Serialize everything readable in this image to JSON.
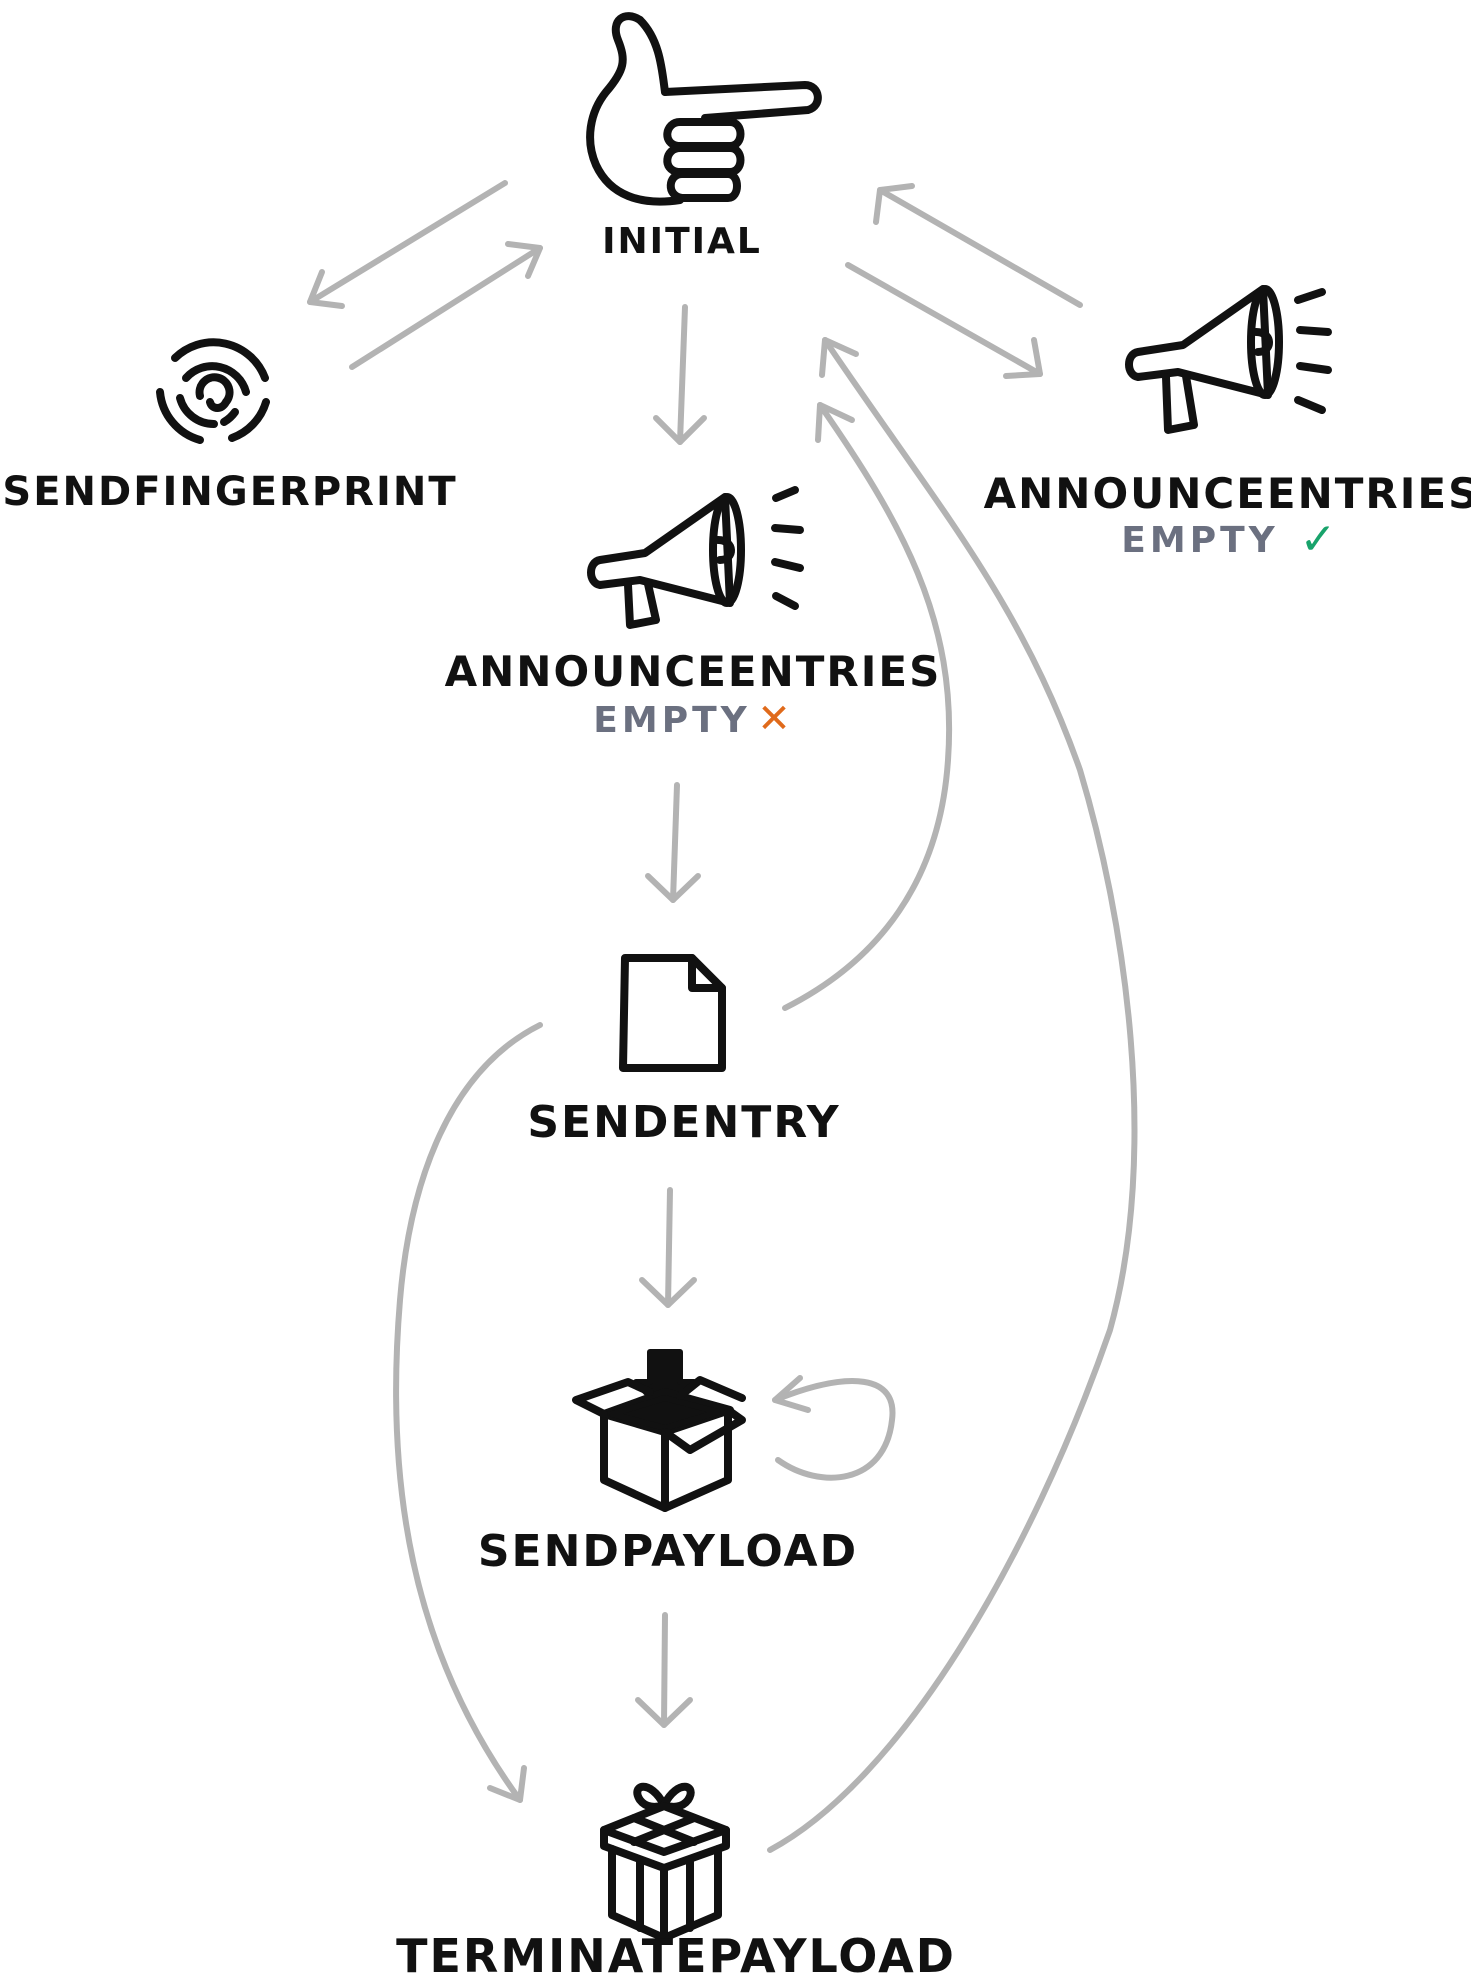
{
  "colors": {
    "edge": "#b3b3b3",
    "ink": "#111111",
    "empty_label": "#6b7080",
    "cross": "#e06a1b",
    "check": "#18a36b"
  },
  "nodes": {
    "initial": {
      "label": "INITIAL",
      "icon": "pointing-hand-icon"
    },
    "send_fingerprint": {
      "label": "SENDFINGERPRINT",
      "icon": "fingerprint-icon"
    },
    "announce_entries_nonempty": {
      "label": "ANNOUNCEENTRIES",
      "sub_label": "EMPTY",
      "status_mark": "✕",
      "icon": "megaphone-icon"
    },
    "announce_entries_empty": {
      "label": "ANNOUNCEENTRIES",
      "sub_label": "EMPTY",
      "status_mark": "✓",
      "icon": "megaphone-icon"
    },
    "send_entry": {
      "label": "SENDENTRY",
      "icon": "document-icon"
    },
    "send_payload": {
      "label": "SENDPAYLOAD",
      "icon": "box-download-icon"
    },
    "terminate_payload": {
      "label": "TERMINATEPAYLOAD",
      "icon": "gift-icon"
    }
  },
  "edges": [
    {
      "from": "initial",
      "to": "send_fingerprint"
    },
    {
      "from": "send_fingerprint",
      "to": "initial"
    },
    {
      "from": "initial",
      "to": "announce_entries_nonempty"
    },
    {
      "from": "initial",
      "to": "announce_entries_empty"
    },
    {
      "from": "announce_entries_empty",
      "to": "initial"
    },
    {
      "from": "announce_entries_nonempty",
      "to": "send_entry"
    },
    {
      "from": "send_entry",
      "to": "initial"
    },
    {
      "from": "send_entry",
      "to": "send_payload"
    },
    {
      "from": "send_payload",
      "to": "send_payload"
    },
    {
      "from": "send_entry",
      "to": "terminate_payload"
    },
    {
      "from": "send_payload",
      "to": "terminate_payload"
    },
    {
      "from": "terminate_payload",
      "to": "initial"
    }
  ]
}
